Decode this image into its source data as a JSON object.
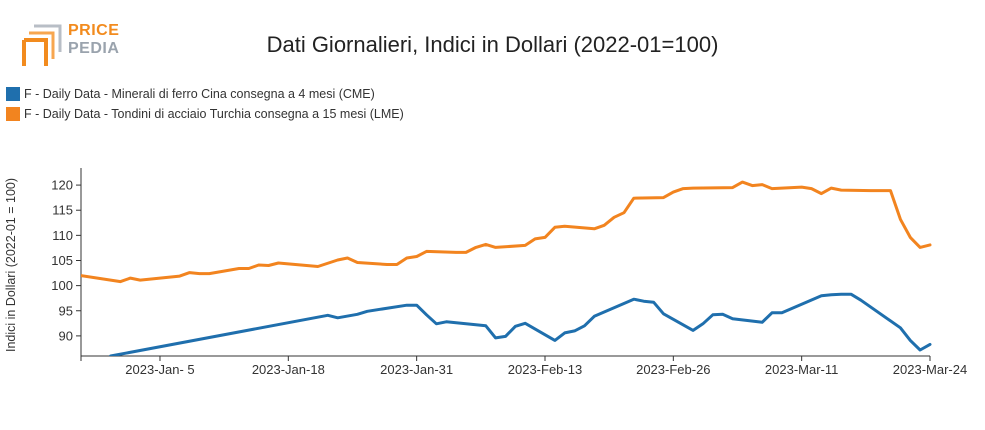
{
  "brand": {
    "top": "PRICE",
    "bottom": "PEDIA"
  },
  "colors": {
    "series1": "#1f6fad",
    "series2": "#f2841f",
    "axis": "#333333",
    "brand_orange": "#f28b1e",
    "brand_grey": "#9aa3ad"
  },
  "chart_data": {
    "type": "line",
    "title": "Dati Giornalieri, Indici in Dollari (2022-01=100)",
    "ylabel": "Indici in Dollari (2022-01 = 100)",
    "xlabel": "",
    "ylim": [
      86,
      123
    ],
    "xlim": [
      "2022-12-28",
      "2023-03-24"
    ],
    "yticks": [
      90,
      95,
      100,
      105,
      110,
      115,
      120
    ],
    "xticks": [
      {
        "date": "2023-01-05",
        "label": "2023-Jan- 5"
      },
      {
        "date": "2023-01-18",
        "label": "2023-Jan-18"
      },
      {
        "date": "2023-01-31",
        "label": "2023-Jan-31"
      },
      {
        "date": "2023-02-13",
        "label": "2023-Feb-13"
      },
      {
        "date": "2023-02-26",
        "label": "2023-Feb-26"
      },
      {
        "date": "2023-03-11",
        "label": "2023-Mar-11"
      },
      {
        "date": "2023-03-24",
        "label": "2023-Mar-24"
      }
    ],
    "grid": false,
    "legend_position": "top-left",
    "series": [
      {
        "name": "F - Daily Data - Minerali di ferro Cina consegna a 4 mesi (CME)",
        "color": "#1f6fad",
        "points": [
          [
            "2022-12-31",
            86.0
          ],
          [
            "2023-01-22",
            94.1
          ],
          [
            "2023-01-23",
            93.6
          ],
          [
            "2023-01-25",
            94.3
          ],
          [
            "2023-01-26",
            94.9
          ],
          [
            "2023-01-30",
            96.1
          ],
          [
            "2023-01-31",
            96.1
          ],
          [
            "2023-02-01",
            94.2
          ],
          [
            "2023-02-02",
            92.4
          ],
          [
            "2023-02-03",
            92.8
          ],
          [
            "2023-02-07",
            92.0
          ],
          [
            "2023-02-08",
            89.6
          ],
          [
            "2023-02-09",
            89.9
          ],
          [
            "2023-02-10",
            91.9
          ],
          [
            "2023-02-11",
            92.5
          ],
          [
            "2023-02-14",
            89.1
          ],
          [
            "2023-02-15",
            90.6
          ],
          [
            "2023-02-16",
            91.0
          ],
          [
            "2023-02-17",
            92.0
          ],
          [
            "2023-02-18",
            93.9
          ],
          [
            "2023-02-22",
            97.3
          ],
          [
            "2023-02-23",
            96.9
          ],
          [
            "2023-02-24",
            96.7
          ],
          [
            "2023-02-25",
            94.4
          ],
          [
            "2023-02-28",
            91.1
          ],
          [
            "2023-03-01",
            92.4
          ],
          [
            "2023-03-02",
            94.2
          ],
          [
            "2023-03-03",
            94.3
          ],
          [
            "2023-03-04",
            93.4
          ],
          [
            "2023-03-07",
            92.7
          ],
          [
            "2023-03-08",
            94.6
          ],
          [
            "2023-03-09",
            94.6
          ],
          [
            "2023-03-13",
            98.0
          ],
          [
            "2023-03-14",
            98.2
          ],
          [
            "2023-03-15",
            98.3
          ],
          [
            "2023-03-16",
            98.3
          ],
          [
            "2023-03-17",
            97.1
          ],
          [
            "2023-03-21",
            91.6
          ],
          [
            "2023-03-22",
            89.1
          ],
          [
            "2023-03-23",
            87.2
          ],
          [
            "2023-03-24",
            88.3
          ]
        ]
      },
      {
        "name": "F - Daily Data - Tondini di acciaio Turchia consegna a 15 mesi (LME)",
        "color": "#f2841f",
        "points": [
          [
            "2022-12-28",
            102.0
          ],
          [
            "2023-01-01",
            100.8
          ],
          [
            "2023-01-02",
            101.5
          ],
          [
            "2023-01-03",
            101.1
          ],
          [
            "2023-01-07",
            101.9
          ],
          [
            "2023-01-08",
            102.6
          ],
          [
            "2023-01-09",
            102.4
          ],
          [
            "2023-01-10",
            102.4
          ],
          [
            "2023-01-13",
            103.4
          ],
          [
            "2023-01-14",
            103.4
          ],
          [
            "2023-01-15",
            104.1
          ],
          [
            "2023-01-16",
            104.0
          ],
          [
            "2023-01-17",
            104.5
          ],
          [
            "2023-01-21",
            103.8
          ],
          [
            "2023-01-23",
            105.1
          ],
          [
            "2023-01-24",
            105.5
          ],
          [
            "2023-01-25",
            104.6
          ],
          [
            "2023-01-28",
            104.2
          ],
          [
            "2023-01-29",
            104.2
          ],
          [
            "2023-01-30",
            105.5
          ],
          [
            "2023-01-31",
            105.8
          ],
          [
            "2023-02-01",
            106.8
          ],
          [
            "2023-02-04",
            106.6
          ],
          [
            "2023-02-05",
            106.6
          ],
          [
            "2023-02-06",
            107.6
          ],
          [
            "2023-02-07",
            108.2
          ],
          [
            "2023-02-08",
            107.6
          ],
          [
            "2023-02-11",
            108.0
          ],
          [
            "2023-02-12",
            109.3
          ],
          [
            "2023-02-13",
            109.6
          ],
          [
            "2023-02-14",
            111.6
          ],
          [
            "2023-02-15",
            111.8
          ],
          [
            "2023-02-18",
            111.3
          ],
          [
            "2023-02-19",
            112.0
          ],
          [
            "2023-02-20",
            113.6
          ],
          [
            "2023-02-21",
            114.5
          ],
          [
            "2023-02-22",
            117.4
          ],
          [
            "2023-02-25",
            117.5
          ],
          [
            "2023-02-26",
            118.6
          ],
          [
            "2023-02-27",
            119.3
          ],
          [
            "2023-02-28",
            119.4
          ],
          [
            "2023-03-04",
            119.5
          ],
          [
            "2023-03-05",
            120.6
          ],
          [
            "2023-03-06",
            119.9
          ],
          [
            "2023-03-07",
            120.1
          ],
          [
            "2023-03-08",
            119.3
          ],
          [
            "2023-03-11",
            119.6
          ],
          [
            "2023-03-12",
            119.3
          ],
          [
            "2023-03-13",
            118.3
          ],
          [
            "2023-03-14",
            119.4
          ],
          [
            "2023-03-15",
            119.0
          ],
          [
            "2023-03-18",
            118.9
          ],
          [
            "2023-03-19",
            118.9
          ],
          [
            "2023-03-20",
            118.9
          ],
          [
            "2023-03-21",
            113.2
          ],
          [
            "2023-03-22",
            109.6
          ],
          [
            "2023-03-23",
            107.6
          ],
          [
            "2023-03-24",
            108.1
          ]
        ]
      }
    ]
  }
}
